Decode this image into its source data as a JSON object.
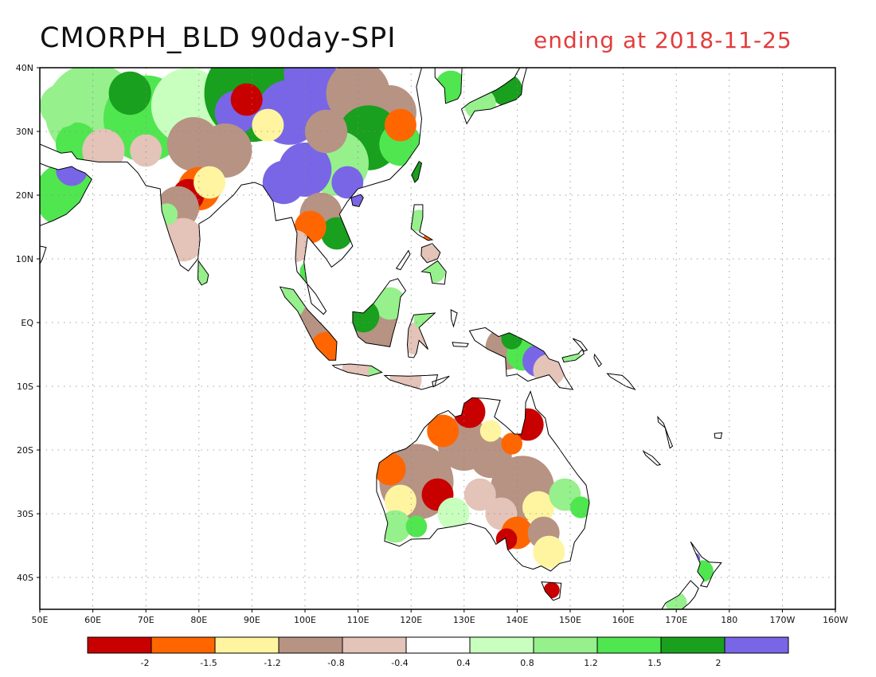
{
  "title": "CMORPH_BLD 90day-SPI",
  "subtitle": "ending at 2018-11-25",
  "map": {
    "projection": "equirectangular",
    "lon_range": [
      50,
      200
    ],
    "lat_range": [
      -45,
      40
    ],
    "lon_ticks": [
      {
        "value": 50,
        "label": "50E"
      },
      {
        "value": 60,
        "label": "60E"
      },
      {
        "value": 70,
        "label": "70E"
      },
      {
        "value": 80,
        "label": "80E"
      },
      {
        "value": 90,
        "label": "90E"
      },
      {
        "value": 100,
        "label": "100E"
      },
      {
        "value": 110,
        "label": "110E"
      },
      {
        "value": 120,
        "label": "120E"
      },
      {
        "value": 130,
        "label": "130E"
      },
      {
        "value": 140,
        "label": "140E"
      },
      {
        "value": 150,
        "label": "150E"
      },
      {
        "value": 160,
        "label": "160E"
      },
      {
        "value": 170,
        "label": "170E"
      },
      {
        "value": 180,
        "label": "180"
      },
      {
        "value": 190,
        "label": "170W"
      },
      {
        "value": 200,
        "label": "160W"
      }
    ],
    "lat_ticks": [
      {
        "value": 40,
        "label": "40N"
      },
      {
        "value": 30,
        "label": "30N"
      },
      {
        "value": 20,
        "label": "20N"
      },
      {
        "value": 10,
        "label": "10N"
      },
      {
        "value": 0,
        "label": "EQ"
      },
      {
        "value": -10,
        "label": "10S"
      },
      {
        "value": -20,
        "label": "20S"
      },
      {
        "value": -30,
        "label": "30S"
      },
      {
        "value": -40,
        "label": "40S"
      }
    ],
    "grid": true,
    "coastline_color": "#000000",
    "ocean_color": "#ffffff"
  },
  "legend": {
    "colors": [
      "#c80000",
      "#ff6600",
      "#fff5a0",
      "#b79384",
      "#e4c3b8",
      "#ffffff",
      "#c8ffbe",
      "#96f08c",
      "#50e650",
      "#19a01e",
      "#7866e6"
    ],
    "labels": [
      "-2",
      "-1.5",
      "-1.2",
      "-0.8",
      "-0.4",
      "0.4",
      "0.8",
      "1.2",
      "1.5",
      "2"
    ]
  }
}
